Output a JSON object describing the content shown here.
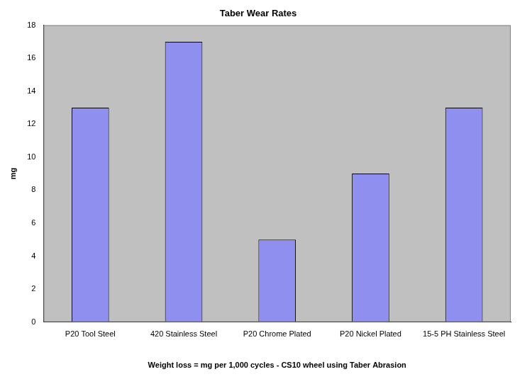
{
  "chart_data": {
    "type": "bar",
    "title": "Taber Wear Rates",
    "categories": [
      "P20 Tool Steel",
      "420 Stainless Steel",
      "P20 Chrome Plated",
      "P20 Nickel Plated",
      "15-5 PH Stainless Steel"
    ],
    "values": [
      13,
      17,
      5,
      9,
      13
    ],
    "color": "#8f8ff0",
    "x_label": "Weight loss = mg per 1,000 cycles - CS10 wheel using Taber Abrasion",
    "y_label": "mg",
    "ylim": [
      0,
      18
    ],
    "yticks": [
      0,
      2,
      4,
      6,
      8,
      10,
      12,
      14,
      16,
      18
    ],
    "grid": false
  }
}
